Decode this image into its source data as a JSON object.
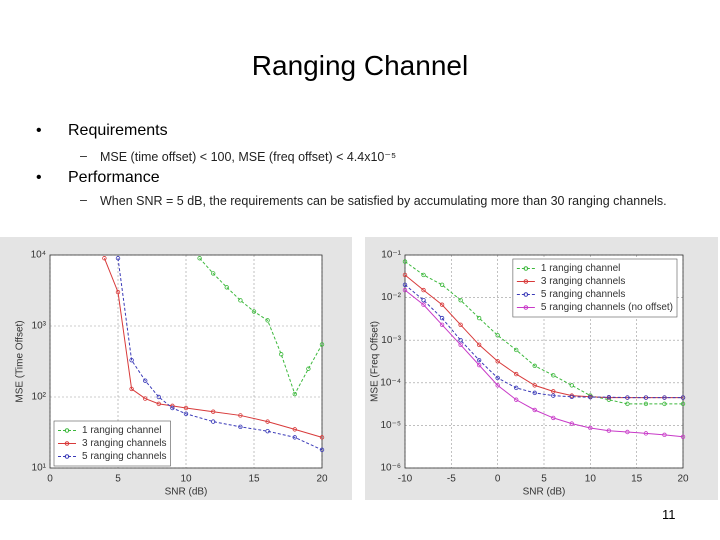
{
  "title": "Ranging Channel",
  "bullets": [
    {
      "text": "Requirements",
      "sub": "MSE (time offset) < 100,  MSE (freq offset) < 4.4x10⁻⁵"
    },
    {
      "text": "Performance",
      "sub": "When SNR = 5 dB, the requirements can be satisfied by accumulating more than 30 ranging channels."
    }
  ],
  "page_number": "11",
  "chart_data": [
    {
      "type": "line",
      "xlabel": "SNR (dB)",
      "ylabel": "MSE (Time Offset)",
      "xlim": [
        0,
        20
      ],
      "xticks": [
        0,
        5,
        10,
        15,
        20
      ],
      "ylim": [
        10,
        10000
      ],
      "log_y": true,
      "grid": true,
      "legend": "lower left",
      "yticks": [
        {
          "value": 10,
          "label": "10¹"
        },
        {
          "value": 100,
          "label": "10²"
        },
        {
          "value": 1000,
          "label": "10³"
        },
        {
          "value": 10000,
          "label": "10⁴"
        }
      ],
      "series": [
        {
          "name": "1 ranging channel",
          "color": "#3cb83c",
          "x": [
            11,
            12,
            13,
            14,
            15,
            16,
            17,
            18,
            19,
            20
          ],
          "values": [
            9000,
            5500,
            3500,
            2300,
            1600,
            1200,
            400,
            110,
            250,
            550
          ]
        },
        {
          "name": "3 ranging channels",
          "color": "#d83a3a",
          "x": [
            4,
            5,
            6,
            7,
            8,
            9,
            10,
            12,
            14,
            16,
            18,
            20
          ],
          "values": [
            9000,
            3000,
            130,
            95,
            80,
            75,
            70,
            62,
            55,
            45,
            35,
            27
          ]
        },
        {
          "name": "5 ranging channels",
          "color": "#3a3ab8",
          "x": [
            5,
            6,
            7,
            8,
            9,
            10,
            12,
            14,
            16,
            18,
            20
          ],
          "values": [
            9000,
            330,
            170,
            100,
            70,
            58,
            45,
            38,
            33,
            27,
            18
          ]
        }
      ]
    },
    {
      "type": "line",
      "xlabel": "SNR (dB)",
      "ylabel": "MSE (Freq Offset)",
      "xlim": [
        -10,
        20
      ],
      "xticks": [
        -10,
        -5,
        0,
        5,
        10,
        15,
        20
      ],
      "ylim": [
        1e-06,
        0.1
      ],
      "log_y": true,
      "grid": true,
      "legend": "upper right",
      "yticks": [
        {
          "value": 1e-06,
          "label": "10⁻⁶"
        },
        {
          "value": 1e-05,
          "label": "10⁻⁵"
        },
        {
          "value": 0.0001,
          "label": "10⁻⁴"
        },
        {
          "value": 0.001,
          "label": "10⁻³"
        },
        {
          "value": 0.01,
          "label": "10⁻²"
        },
        {
          "value": 0.1,
          "label": "10⁻¹"
        }
      ],
      "series": [
        {
          "name": "1 ranging channel",
          "color": "#3cb83c",
          "x": [
            -10,
            -8,
            -6,
            -4,
            -2,
            0,
            2,
            4,
            6,
            8,
            10,
            12,
            14,
            16,
            18,
            20
          ],
          "values": [
            0.07,
            0.034,
            0.02,
            0.0087,
            0.0033,
            0.0013,
            0.00059,
            0.00025,
            0.00015,
            8.7e-05,
            5e-05,
            4e-05,
            3.2e-05,
            3.2e-05,
            3.2e-05,
            3.2e-05
          ]
        },
        {
          "name": "3 ranging channels",
          "color": "#d83a3a",
          "x": [
            -10,
            -8,
            -6,
            -4,
            -2,
            0,
            2,
            4,
            6,
            8,
            10,
            12,
            14,
            16,
            18,
            20
          ],
          "values": [
            0.034,
            0.015,
            0.0068,
            0.0023,
            0.00078,
            0.00032,
            0.00016,
            8.7e-05,
            6.3e-05,
            5e-05,
            4.7e-05,
            4.5e-05,
            4.5e-05,
            4.5e-05,
            4.5e-05,
            4.5e-05
          ]
        },
        {
          "name": "5 ranging channels",
          "color": "#3a3ab8",
          "x": [
            -10,
            -8,
            -6,
            -4,
            -2,
            0,
            2,
            4,
            6,
            8,
            10,
            12,
            14,
            16,
            18,
            20
          ],
          "values": [
            0.02,
            0.0087,
            0.0033,
            0.001,
            0.00034,
            0.00013,
            7.6e-05,
            5.8e-05,
            5e-05,
            4.7e-05,
            4.6e-05,
            4.6e-05,
            4.5e-05,
            4.5e-05,
            4.5e-05,
            4.5e-05
          ]
        },
        {
          "name": "5 ranging channels (no offset)",
          "color": "#c83ac8",
          "x": [
            -10,
            -8,
            -6,
            -4,
            -2,
            0,
            2,
            4,
            6,
            8,
            10,
            12,
            14,
            16,
            18,
            20
          ],
          "values": [
            0.015,
            0.0068,
            0.0023,
            0.00078,
            0.00026,
            8.7e-05,
            4e-05,
            2.3e-05,
            1.5e-05,
            1.1e-05,
            8.7e-06,
            7.5e-06,
            7e-06,
            6.5e-06,
            6e-06,
            5.4e-06
          ]
        }
      ]
    }
  ]
}
